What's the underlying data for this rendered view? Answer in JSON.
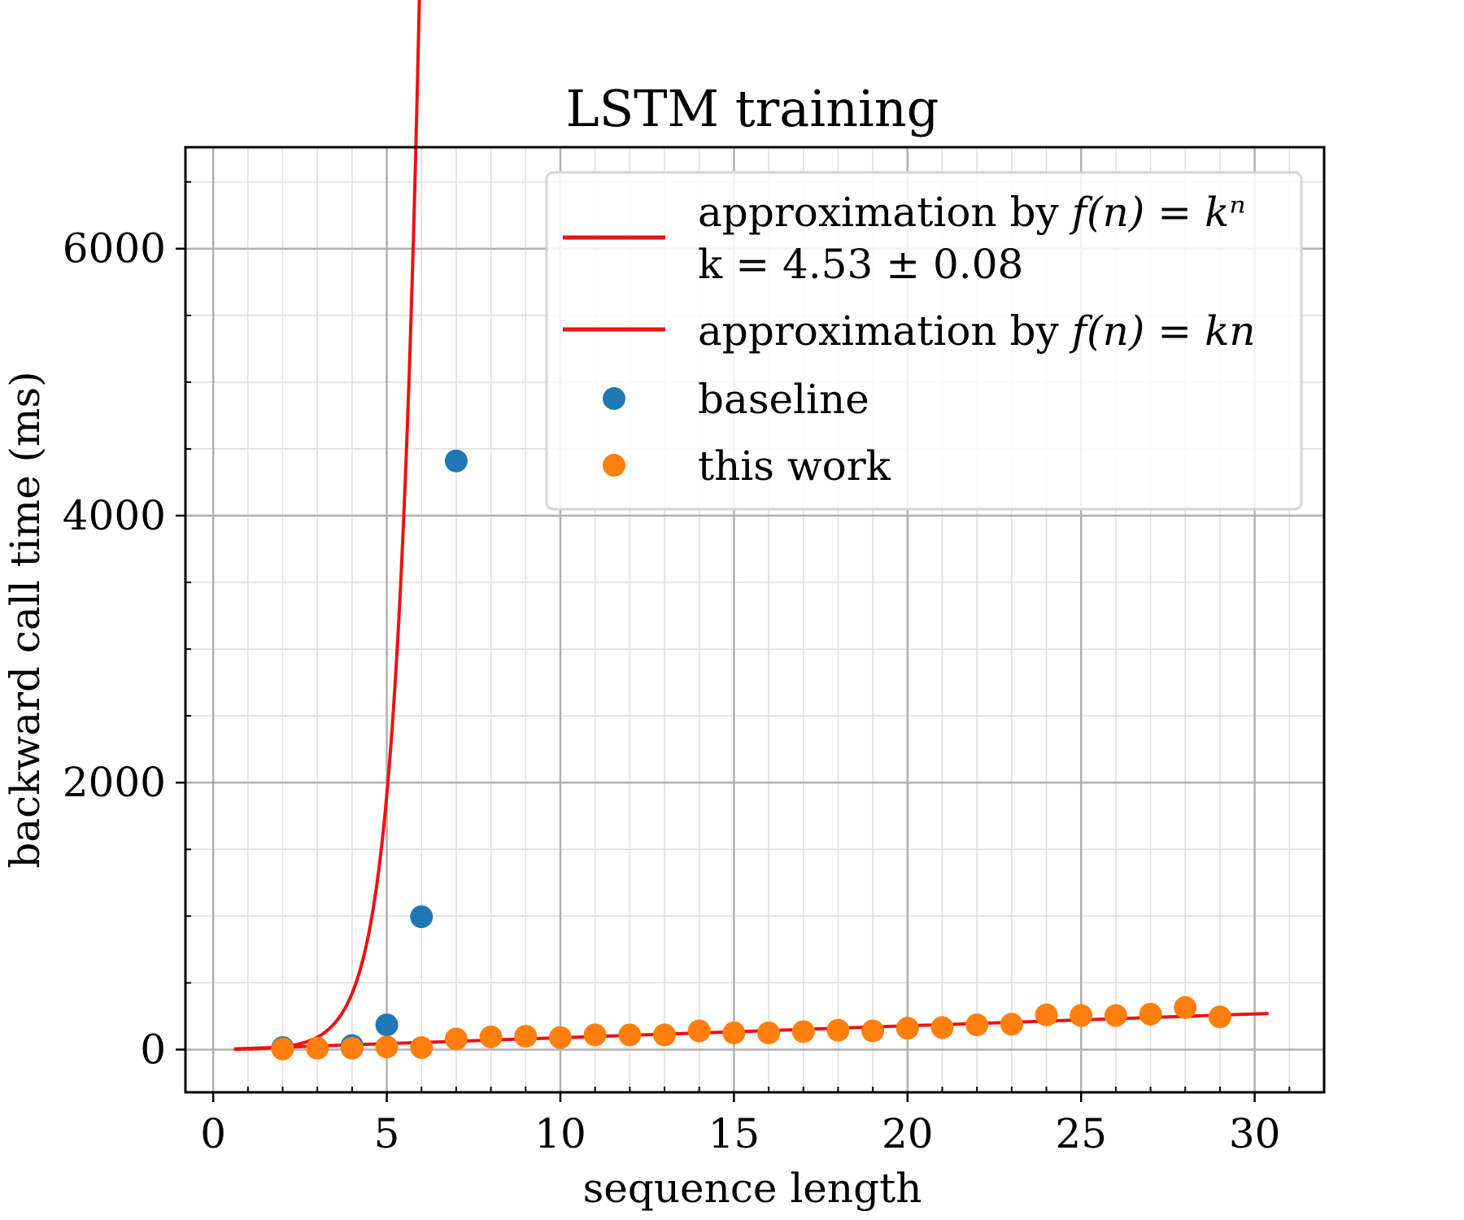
{
  "chart_data": {
    "type": "scatter",
    "title": "LSTM training",
    "xlabel": "sequence length",
    "ylabel": "backward call time (ms)",
    "xlim": [
      -0.8,
      32
    ],
    "ylim": [
      -320,
      6760
    ],
    "x_ticks": [
      0,
      5,
      10,
      15,
      20,
      25,
      30
    ],
    "x_tick_labels": [
      "0",
      "5",
      "10",
      "15",
      "20",
      "25",
      "30"
    ],
    "y_ticks": [
      0,
      2000,
      4000,
      6000
    ],
    "y_tick_labels": [
      "0",
      "2000",
      "4000",
      "6000"
    ],
    "x_minor_step": 1,
    "y_minor_step": 500,
    "grid": true,
    "legend_position": "top-right",
    "colors": {
      "fit": "#ee1111",
      "baseline": "#1f77b4",
      "this_work": "#ff7f0e",
      "grid_major": "#b0b0b0",
      "grid_minor": "#dddddd"
    },
    "legend": {
      "exp_fit_prefix": "approximation by ",
      "exp_fit_formula": "f(n) = kⁿ",
      "exp_fit_param": "k = 4.53 ± 0.08",
      "lin_fit_prefix": "approximation by ",
      "lin_fit_formula": "f(n) = kn",
      "baseline": "baseline",
      "this_work": "this work"
    },
    "fits": [
      {
        "kind": "exponential",
        "k": 4.53,
        "x_range": [
          0.6,
          7.25
        ]
      },
      {
        "kind": "linear",
        "k": 8.9,
        "x_range": [
          0.6,
          30.4
        ]
      }
    ],
    "series": [
      {
        "name": "baseline",
        "x": [
          2,
          4,
          5,
          6,
          7
        ],
        "y": [
          15,
          30,
          185,
          995,
          4410
        ]
      },
      {
        "name": "this work",
        "x": [
          2,
          3,
          4,
          5,
          6,
          7,
          8,
          9,
          10,
          11,
          12,
          13,
          14,
          15,
          16,
          17,
          18,
          19,
          20,
          21,
          22,
          23,
          24,
          25,
          26,
          27,
          28,
          29
        ],
        "y": [
          5,
          10,
          10,
          20,
          15,
          80,
          95,
          100,
          90,
          110,
          110,
          110,
          140,
          125,
          125,
          135,
          145,
          140,
          160,
          165,
          185,
          190,
          260,
          255,
          255,
          265,
          315,
          245
        ]
      }
    ]
  }
}
